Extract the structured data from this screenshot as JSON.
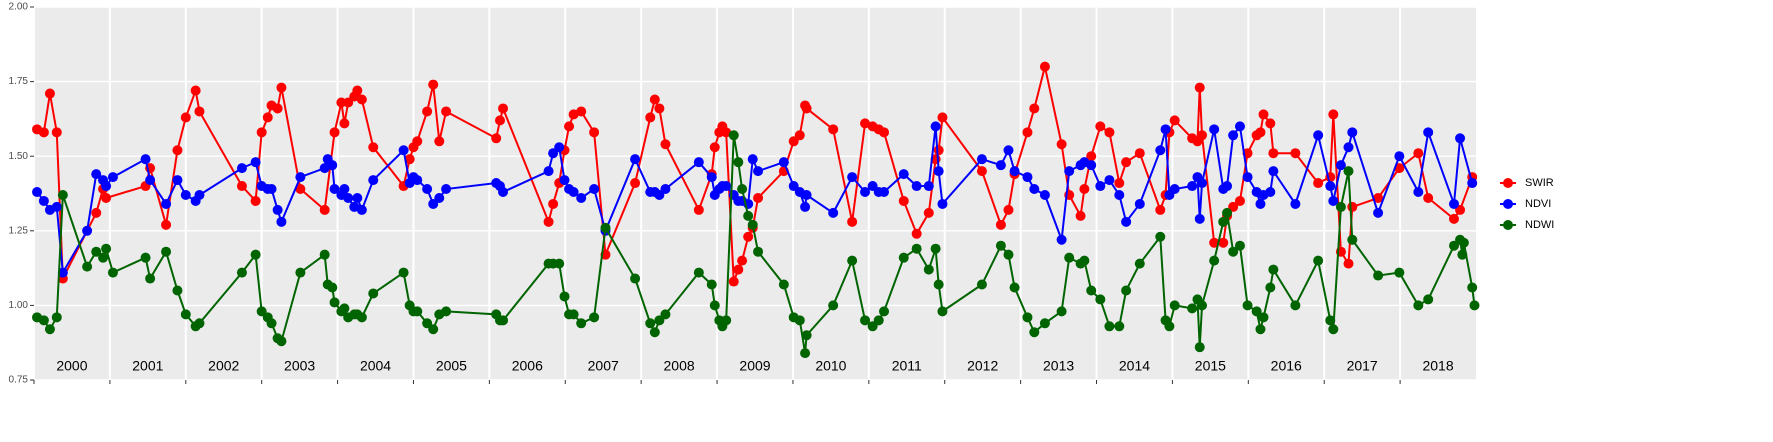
{
  "chart_data": {
    "type": "line",
    "xlim": [
      2000,
      2019
    ],
    "xticks": [
      2000,
      2001,
      2002,
      2003,
      2004,
      2005,
      2006,
      2007,
      2008,
      2009,
      2010,
      2011,
      2012,
      2013,
      2014,
      2015,
      2016,
      2017,
      2018
    ],
    "ylim": [
      0.75,
      2.0
    ],
    "yticks": [
      0.75,
      {
        "value": 1.0,
        "label": "1.00"
      },
      1.25,
      {
        "value": 1.5,
        "label": "1.50"
      },
      1.75,
      {
        "value": 2.0,
        "label": "2.00"
      }
    ],
    "grid": true,
    "legend": "right",
    "series": [
      {
        "name": "SWIR",
        "color": "#ff0000",
        "x": [
          2000.04,
          2000.13,
          2000.21,
          2000.3,
          2000.38,
          2000.82,
          2000.91,
          2000.95,
          2001.47,
          2001.53,
          2001.74,
          2001.89,
          2002.0,
          2002.13,
          2002.18,
          2002.74,
          2002.92,
          2003.0,
          2003.08,
          2003.13,
          2003.21,
          2003.26,
          2003.51,
          2003.83,
          2003.96,
          2004.05,
          2004.09,
          2004.14,
          2004.22,
          2004.26,
          2004.32,
          2004.47,
          2004.87,
          2004.95,
          2005.0,
          2005.05,
          2005.18,
          2005.26,
          2005.34,
          2005.43,
          2006.09,
          2006.14,
          2006.18,
          2006.78,
          2006.84,
          2006.92,
          2006.99,
          2007.05,
          2007.11,
          2007.21,
          2007.38,
          2007.53,
          2007.92,
          2008.12,
          2008.18,
          2008.24,
          2008.32,
          2008.76,
          2008.93,
          2008.97,
          2009.03,
          2009.07,
          2009.12,
          2009.22,
          2009.28,
          2009.33,
          2009.41,
          2009.47,
          2009.54,
          2009.88,
          2010.01,
          2010.09,
          2010.16,
          2010.18,
          2010.53,
          2010.78,
          2010.95,
          2011.05,
          2011.13,
          2011.2,
          2011.46,
          2011.63,
          2011.79,
          2011.88,
          2011.92,
          2011.97,
          2012.49,
          2012.74,
          2012.84,
          2012.92,
          2013.09,
          2013.18,
          2013.32,
          2013.54,
          2013.64,
          2013.79,
          2013.84,
          2013.93,
          2014.05,
          2014.17,
          2014.3,
          2014.39,
          2014.57,
          2014.84,
          2014.91,
          2014.96,
          2015.03,
          2015.26,
          2015.33,
          2015.36,
          2015.39,
          2015.55,
          2015.67,
          2015.72,
          2015.8,
          2015.89,
          2015.99,
          2016.11,
          2016.16,
          2016.2,
          2016.29,
          2016.33,
          2016.62,
          2016.92,
          2017.08,
          2017.12,
          2017.22,
          2017.32,
          2017.37,
          2017.71,
          2017.99,
          2018.24,
          2018.37,
          2018.71,
          2018.79,
          2018.95
        ],
        "values": [
          1.59,
          1.58,
          1.71,
          1.58,
          1.09,
          1.31,
          1.39,
          1.36,
          1.4,
          1.46,
          1.27,
          1.52,
          1.63,
          1.72,
          1.65,
          1.4,
          1.35,
          1.58,
          1.63,
          1.67,
          1.66,
          1.73,
          1.39,
          1.32,
          1.58,
          1.68,
          1.61,
          1.68,
          1.7,
          1.72,
          1.69,
          1.53,
          1.4,
          1.49,
          1.53,
          1.55,
          1.65,
          1.74,
          1.55,
          1.65,
          1.56,
          1.62,
          1.66,
          1.28,
          1.34,
          1.41,
          1.52,
          1.6,
          1.64,
          1.65,
          1.58,
          1.17,
          1.41,
          1.63,
          1.69,
          1.66,
          1.54,
          1.32,
          1.44,
          1.53,
          1.58,
          1.6,
          1.58,
          1.08,
          1.12,
          1.15,
          1.23,
          1.26,
          1.36,
          1.45,
          1.55,
          1.57,
          1.67,
          1.66,
          1.59,
          1.28,
          1.61,
          1.6,
          1.59,
          1.58,
          1.35,
          1.24,
          1.31,
          1.49,
          1.52,
          1.63,
          1.45,
          1.27,
          1.32,
          1.44,
          1.58,
          1.66,
          1.8,
          1.54,
          1.37,
          1.3,
          1.39,
          1.5,
          1.6,
          1.58,
          1.41,
          1.48,
          1.51,
          1.32,
          1.37,
          1.58,
          1.62,
          1.56,
          1.55,
          1.73,
          1.57,
          1.21,
          1.21,
          1.3,
          1.33,
          1.35,
          1.51,
          1.57,
          1.58,
          1.64,
          1.61,
          1.51,
          1.51,
          1.41,
          1.43,
          1.64,
          1.18,
          1.14,
          1.33,
          1.36,
          1.46,
          1.51,
          1.36,
          1.29,
          1.32,
          1.43
        ]
      },
      {
        "name": "NDVI",
        "color": "#0000ff",
        "x": [
          2000.04,
          2000.13,
          2000.21,
          2000.3,
          2000.38,
          2000.7,
          2000.82,
          2000.91,
          2000.95,
          2001.04,
          2001.47,
          2001.53,
          2001.74,
          2001.89,
          2002.0,
          2002.13,
          2002.18,
          2002.74,
          2002.92,
          2003.0,
          2003.08,
          2003.13,
          2003.21,
          2003.26,
          2003.51,
          2003.83,
          2003.87,
          2003.93,
          2003.96,
          2004.05,
          2004.09,
          2004.14,
          2004.22,
          2004.26,
          2004.32,
          2004.47,
          2004.87,
          2004.95,
          2005.0,
          2005.05,
          2005.18,
          2005.26,
          2005.34,
          2005.43,
          2006.09,
          2006.14,
          2006.18,
          2006.78,
          2006.84,
          2006.92,
          2006.99,
          2007.05,
          2007.11,
          2007.21,
          2007.38,
          2007.53,
          2007.92,
          2008.12,
          2008.18,
          2008.24,
          2008.32,
          2008.76,
          2008.93,
          2008.97,
          2009.03,
          2009.07,
          2009.12,
          2009.22,
          2009.28,
          2009.33,
          2009.41,
          2009.47,
          2009.54,
          2009.88,
          2010.01,
          2010.09,
          2010.16,
          2010.18,
          2010.53,
          2010.78,
          2010.95,
          2011.05,
          2011.13,
          2011.2,
          2011.46,
          2011.63,
          2011.79,
          2011.88,
          2011.92,
          2011.97,
          2012.49,
          2012.74,
          2012.84,
          2012.92,
          2013.09,
          2013.18,
          2013.32,
          2013.54,
          2013.64,
          2013.79,
          2013.84,
          2013.93,
          2014.05,
          2014.17,
          2014.3,
          2014.39,
          2014.57,
          2014.84,
          2014.91,
          2014.96,
          2015.03,
          2015.26,
          2015.33,
          2015.36,
          2015.39,
          2015.55,
          2015.67,
          2015.72,
          2015.8,
          2015.89,
          2015.99,
          2016.11,
          2016.16,
          2016.2,
          2016.29,
          2016.33,
          2016.62,
          2016.92,
          2017.08,
          2017.12,
          2017.22,
          2017.32,
          2017.37,
          2017.71,
          2017.99,
          2018.24,
          2018.37,
          2018.71,
          2018.79,
          2018.95
        ],
        "values": [
          1.38,
          1.35,
          1.32,
          1.33,
          1.11,
          1.25,
          1.44,
          1.42,
          1.4,
          1.43,
          1.49,
          1.42,
          1.34,
          1.42,
          1.37,
          1.35,
          1.37,
          1.46,
          1.48,
          1.4,
          1.39,
          1.39,
          1.32,
          1.28,
          1.43,
          1.46,
          1.49,
          1.47,
          1.39,
          1.37,
          1.39,
          1.36,
          1.33,
          1.36,
          1.32,
          1.42,
          1.52,
          1.41,
          1.43,
          1.42,
          1.39,
          1.34,
          1.36,
          1.39,
          1.41,
          1.4,
          1.38,
          1.45,
          1.51,
          1.53,
          1.42,
          1.39,
          1.38,
          1.36,
          1.39,
          1.25,
          1.49,
          1.38,
          1.38,
          1.37,
          1.39,
          1.48,
          1.43,
          1.37,
          1.39,
          1.4,
          1.4,
          1.37,
          1.35,
          1.35,
          1.34,
          1.49,
          1.45,
          1.48,
          1.4,
          1.38,
          1.33,
          1.37,
          1.31,
          1.43,
          1.38,
          1.4,
          1.38,
          1.38,
          1.44,
          1.4,
          1.4,
          1.6,
          1.45,
          1.34,
          1.49,
          1.47,
          1.52,
          1.45,
          1.43,
          1.39,
          1.37,
          1.22,
          1.45,
          1.47,
          1.48,
          1.47,
          1.4,
          1.42,
          1.37,
          1.28,
          1.34,
          1.52,
          1.59,
          1.37,
          1.39,
          1.4,
          1.43,
          1.29,
          1.41,
          1.59,
          1.39,
          1.4,
          1.57,
          1.6,
          1.43,
          1.38,
          1.34,
          1.37,
          1.38,
          1.45,
          1.34,
          1.57,
          1.4,
          1.35,
          1.47,
          1.53,
          1.58,
          1.31,
          1.5,
          1.38,
          1.58,
          1.34,
          1.56,
          1.41
        ]
      },
      {
        "name": "NDWI",
        "color": "#006400",
        "x": [
          2000.04,
          2000.13,
          2000.21,
          2000.3,
          2000.38,
          2000.7,
          2000.82,
          2000.91,
          2000.95,
          2001.04,
          2001.47,
          2001.53,
          2001.74,
          2001.89,
          2002.0,
          2002.13,
          2002.18,
          2002.74,
          2002.92,
          2003.0,
          2003.08,
          2003.13,
          2003.21,
          2003.26,
          2003.51,
          2003.83,
          2003.87,
          2003.93,
          2003.96,
          2004.05,
          2004.09,
          2004.14,
          2004.22,
          2004.26,
          2004.32,
          2004.47,
          2004.87,
          2004.95,
          2005.0,
          2005.05,
          2005.18,
          2005.26,
          2005.34,
          2005.43,
          2006.09,
          2006.14,
          2006.18,
          2006.78,
          2006.84,
          2006.92,
          2006.99,
          2007.05,
          2007.11,
          2007.21,
          2007.38,
          2007.53,
          2007.92,
          2008.12,
          2008.18,
          2008.24,
          2008.32,
          2008.76,
          2008.93,
          2008.97,
          2009.03,
          2009.07,
          2009.12,
          2009.22,
          2009.28,
          2009.33,
          2009.41,
          2009.47,
          2009.54,
          2009.88,
          2010.01,
          2010.09,
          2010.16,
          2010.18,
          2010.53,
          2010.78,
          2010.95,
          2011.05,
          2011.13,
          2011.2,
          2011.46,
          2011.63,
          2011.79,
          2011.88,
          2011.92,
          2011.97,
          2012.49,
          2012.74,
          2012.84,
          2012.92,
          2013.09,
          2013.18,
          2013.32,
          2013.54,
          2013.64,
          2013.79,
          2013.84,
          2013.93,
          2014.05,
          2014.17,
          2014.3,
          2014.39,
          2014.57,
          2014.84,
          2014.91,
          2014.96,
          2015.03,
          2015.26,
          2015.33,
          2015.36,
          2015.39,
          2015.55,
          2015.67,
          2015.72,
          2015.8,
          2015.89,
          2015.99,
          2016.11,
          2016.16,
          2016.2,
          2016.29,
          2016.33,
          2016.62,
          2016.92,
          2017.08,
          2017.12,
          2017.22,
          2017.32,
          2017.37,
          2017.71,
          2017.99,
          2018.24,
          2018.37,
          2018.71,
          2018.79,
          2018.82,
          2018.84,
          2018.95,
          2018.98
        ],
        "values": [
          0.96,
          0.95,
          0.92,
          0.96,
          1.37,
          1.13,
          1.18,
          1.16,
          1.19,
          1.11,
          1.16,
          1.09,
          1.18,
          1.05,
          0.97,
          0.93,
          0.94,
          1.11,
          1.17,
          0.98,
          0.96,
          0.94,
          0.89,
          0.88,
          1.11,
          1.17,
          1.07,
          1.06,
          1.01,
          0.98,
          0.99,
          0.96,
          0.97,
          0.97,
          0.96,
          1.04,
          1.11,
          1.0,
          0.98,
          0.98,
          0.94,
          0.92,
          0.97,
          0.98,
          0.97,
          0.95,
          0.95,
          1.14,
          1.14,
          1.14,
          1.03,
          0.97,
          0.97,
          0.94,
          0.96,
          1.26,
          1.09,
          0.94,
          0.91,
          0.95,
          0.97,
          1.11,
          1.07,
          1.0,
          0.95,
          0.93,
          0.95,
          1.57,
          1.48,
          1.39,
          1.3,
          1.27,
          1.18,
          1.07,
          0.96,
          0.95,
          0.84,
          0.9,
          1.0,
          1.15,
          0.95,
          0.93,
          0.95,
          0.98,
          1.16,
          1.19,
          1.12,
          1.19,
          1.07,
          0.98,
          1.07,
          1.2,
          1.17,
          1.06,
          0.96,
          0.91,
          0.94,
          0.98,
          1.16,
          1.14,
          1.15,
          1.05,
          1.02,
          0.93,
          0.93,
          1.05,
          1.14,
          1.23,
          0.95,
          0.93,
          1.0,
          0.99,
          1.02,
          0.86,
          1.0,
          1.15,
          1.28,
          1.31,
          1.18,
          1.2,
          1.0,
          0.98,
          0.92,
          0.96,
          1.06,
          1.12,
          1.0,
          1.15,
          0.95,
          0.92,
          1.33,
          1.45,
          1.22,
          1.1,
          1.11,
          1.0,
          1.02,
          1.2,
          1.22,
          1.17,
          1.21,
          1.06,
          1.0
        ]
      }
    ]
  }
}
